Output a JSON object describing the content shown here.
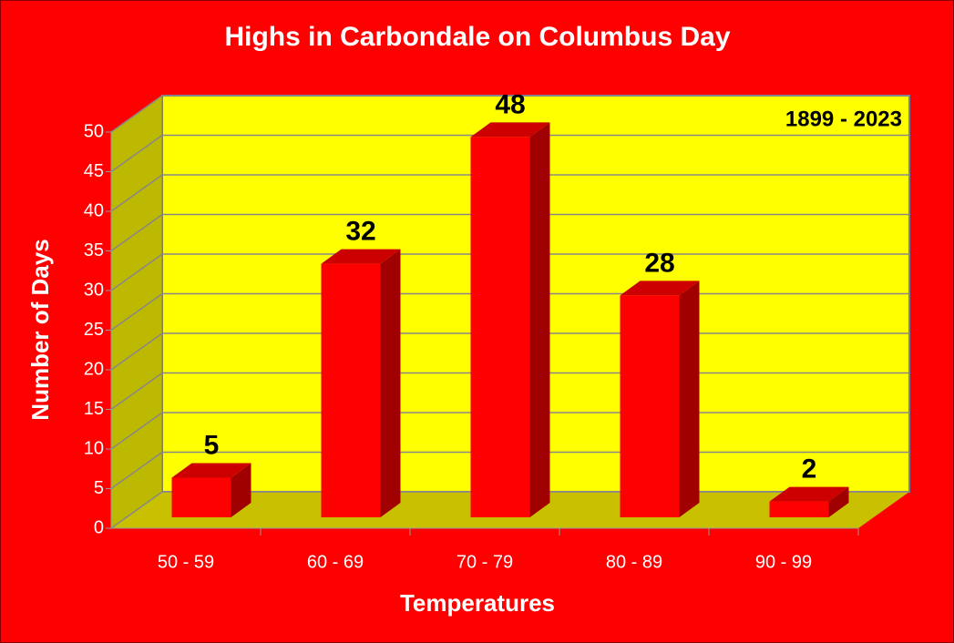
{
  "chart_data": {
    "type": "bar",
    "title": "Highs in Carbondale on Columbus Day",
    "annotation": "1899 - 2023",
    "x_label": "Temperatures",
    "y_label": "Number of Days",
    "categories": [
      "50 - 59",
      "60 - 69",
      "70 - 79",
      "80 - 89",
      "90 - 99"
    ],
    "values": [
      5,
      32,
      48,
      28,
      2
    ],
    "color": "#ff0000",
    "ylim": [
      0,
      50
    ],
    "yticks": [
      0,
      5,
      10,
      15,
      20,
      25,
      30,
      35,
      40,
      45,
      50
    ],
    "grid": true
  }
}
